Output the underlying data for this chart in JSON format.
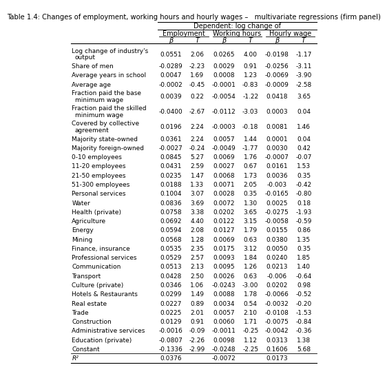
{
  "title": "Table 1.4: Changes of employment, working hours and hourly wages –   multivariate regressions (firm panel)",
  "header1": "Dependent: log change of",
  "col_groups": [
    "Employment",
    "Working hours",
    "Hourly wage"
  ],
  "col_labels": [
    "β",
    "T",
    "β",
    "T",
    "β",
    "T"
  ],
  "rows": [
    {
      "label": "Log change of industry's\n  output",
      "vals": [
        "0.0551",
        "2.06",
        "0.0265",
        "4.00",
        "-0.0198",
        "-1.17"
      ]
    },
    {
      "label": "Share of men",
      "vals": [
        "-0.0289",
        "-2.23",
        "0.0029",
        "0.91",
        "-0.0256",
        "-3.11"
      ]
    },
    {
      "label": "Average years in school",
      "vals": [
        "0.0047",
        "1.69",
        "0.0008",
        "1.23",
        "-0.0069",
        "-3.90"
      ]
    },
    {
      "label": "Average age",
      "vals": [
        "-0.0002",
        "-0.45",
        "-0.0001",
        "-0.83",
        "-0.0009",
        "-2.58"
      ]
    },
    {
      "label": "Fraction paid the base\n  minimum wage",
      "vals": [
        "0.0039",
        "0.22",
        "-0.0054",
        "-1.22",
        "0.0418",
        "3.65"
      ]
    },
    {
      "label": "Fraction paid the skilled\n  minimum wage",
      "vals": [
        "-0.0400",
        "-2.67",
        "-0.0112",
        "-3.03",
        "0.0003",
        "0.04"
      ]
    },
    {
      "label": "Covered by collective\n  agreement",
      "vals": [
        "0.0196",
        "2.24",
        "-0.0003",
        "-0.18",
        "0.0081",
        "1.46"
      ]
    },
    {
      "label": "Majority state-owned",
      "vals": [
        "0.0361",
        "2.24",
        "0.0057",
        "1.44",
        "0.0001",
        "0.04"
      ]
    },
    {
      "label": "Majority foreign-owned",
      "vals": [
        "-0.0027",
        "-0.24",
        "-0.0049",
        "-1.77",
        "0.0030",
        "0.42"
      ]
    },
    {
      "label": "0-10 employees",
      "vals": [
        "0.0845",
        "5.27",
        "0.0069",
        "1.76",
        "-0.0007",
        "-0.07"
      ]
    },
    {
      "label": "11-20 employees",
      "vals": [
        "0.0431",
        "2.59",
        "0.0027",
        "0.67",
        "0.0161",
        "1.53"
      ]
    },
    {
      "label": "21-50 employees",
      "vals": [
        "0.0235",
        "1.47",
        "0.0068",
        "1.73",
        "0.0036",
        "0.35"
      ]
    },
    {
      "label": "51-300 employees",
      "vals": [
        "0.0188",
        "1.33",
        "0.0071",
        "2.05",
        "-0.003",
        "-0.42"
      ]
    },
    {
      "label": "Personal services",
      "vals": [
        "0.1004",
        "3.07",
        "0.0028",
        "0.35",
        "-0.0165",
        "-0.80"
      ]
    },
    {
      "label": "Water",
      "vals": [
        "0.0836",
        "3.69",
        "0.0072",
        "1.30",
        "0.0025",
        "0.18"
      ]
    },
    {
      "label": "Health (private)",
      "vals": [
        "0.0758",
        "3.38",
        "0.0202",
        "3.65",
        "-0.0275",
        "-1.93"
      ]
    },
    {
      "label": "Agriculture",
      "vals": [
        "0.0692",
        "4.40",
        "0.0122",
        "3.15",
        "-0.0058",
        "-0.59"
      ]
    },
    {
      "label": "Energy",
      "vals": [
        "0.0594",
        "2.08",
        "0.0127",
        "1.79",
        "0.0155",
        "0.86"
      ]
    },
    {
      "label": "Mining",
      "vals": [
        "0.0568",
        "1.28",
        "0.0069",
        "0.63",
        "0.0380",
        "1.35"
      ]
    },
    {
      "label": "Finance, insurance",
      "vals": [
        "0.0535",
        "2.35",
        "0.0175",
        "3.12",
        "0.0050",
        "0.35"
      ]
    },
    {
      "label": "Professional services",
      "vals": [
        "0.0529",
        "2.57",
        "0.0093",
        "1.84",
        "0.0240",
        "1.85"
      ]
    },
    {
      "label": "Communication",
      "vals": [
        "0.0513",
        "2.13",
        "0.0095",
        "1.26",
        "0.0213",
        "1.40"
      ]
    },
    {
      "label": "Transport",
      "vals": [
        "0.0428",
        "2.50",
        "0.0026",
        "0.63",
        "-0.006",
        "-0.64"
      ]
    },
    {
      "label": "Culture (private)",
      "vals": [
        "0.0346",
        "1.06",
        "-0.0243",
        "-3.00",
        "0.0202",
        "0.98"
      ]
    },
    {
      "label": "Hotels & Restaurants",
      "vals": [
        "0.0299",
        "1.49",
        "0.0088",
        "1.78",
        "-0.0066",
        "-0.52"
      ]
    },
    {
      "label": "Real estate",
      "vals": [
        "0.0227",
        "0.89",
        "0.0034",
        "0.54",
        "-0.0032",
        "-0.20"
      ]
    },
    {
      "label": "Trade",
      "vals": [
        "0.0225",
        "2.01",
        "0.0057",
        "2.10",
        "-0.0108",
        "-1.53"
      ]
    },
    {
      "label": "Construction",
      "vals": [
        "0.0129",
        "0.91",
        "0.0060",
        "1.71",
        "-0.0075",
        "-0.84"
      ]
    },
    {
      "label": "Administrative services",
      "vals": [
        "-0.0016",
        "-0.09",
        "-0.0011",
        "-0.25",
        "-0.0042",
        "-0.36"
      ]
    },
    {
      "label": "Education (private)",
      "vals": [
        "-0.0807",
        "-2.26",
        "0.0098",
        "1.12",
        "0.0313",
        "1.38"
      ]
    },
    {
      "label": "Constant",
      "vals": [
        "-0.1336",
        "-2.99",
        "-0.0248",
        "-2.25",
        "0.1606",
        "5.68"
      ]
    },
    {
      "label": "R²",
      "vals": [
        "0.0376",
        "",
        "-0.0072",
        "",
        "0.0173",
        ""
      ]
    }
  ],
  "bg_color": "#ffffff",
  "text_color": "#000000",
  "font_size": 6.5,
  "header_font_size": 7.0,
  "title_font_size": 7.2
}
